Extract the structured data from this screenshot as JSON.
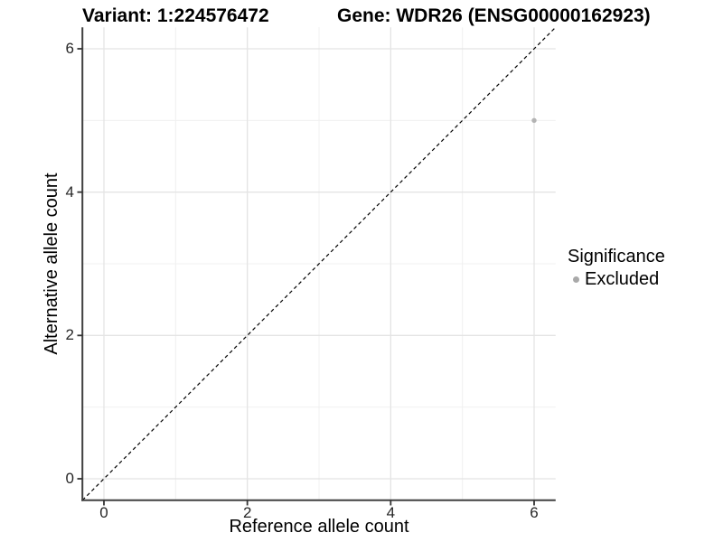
{
  "figure": {
    "title_left": "Variant: 1:224576472",
    "title_right": "Gene: WDR26 (ENSG00000162923)"
  },
  "axes": {
    "x": {
      "label": "Reference allele count",
      "ticks": [
        "0",
        "2",
        "4",
        "6"
      ]
    },
    "y": {
      "label": "Alternative allele count",
      "ticks": [
        "0",
        "2",
        "4",
        "6"
      ]
    }
  },
  "legend": {
    "title": "Significance",
    "items": [
      {
        "label": "Excluded",
        "color": "#a9a9a9"
      }
    ]
  },
  "colors": {
    "point": "#b3b3b3",
    "grid_major": "#e4e4e4",
    "grid_minor": "#f0f0f0",
    "axis_line": "#404040",
    "reference_line": "#000000",
    "background": "#ffffff"
  },
  "chart_data": {
    "type": "scatter",
    "title": "Variant: 1:224576472 | Gene: WDR26 (ENSG00000162923)",
    "xlabel": "Reference allele count",
    "ylabel": "Alternative allele count",
    "xlim": [
      -0.3,
      6.3
    ],
    "ylim": [
      -0.3,
      6.3
    ],
    "x_ticks": [
      0,
      2,
      4,
      6
    ],
    "y_ticks": [
      0,
      2,
      4,
      6
    ],
    "grid": true,
    "legend_position": "right",
    "series": [
      {
        "name": "Excluded",
        "color": "#b3b3b3",
        "points": [
          {
            "x": 6,
            "y": 5
          }
        ]
      }
    ],
    "reference_line": {
      "type": "identity_y_equals_x",
      "style": "dashed",
      "from": [
        -0.3,
        -0.3
      ],
      "to": [
        6.3,
        6.3
      ],
      "color": "#000000"
    }
  }
}
